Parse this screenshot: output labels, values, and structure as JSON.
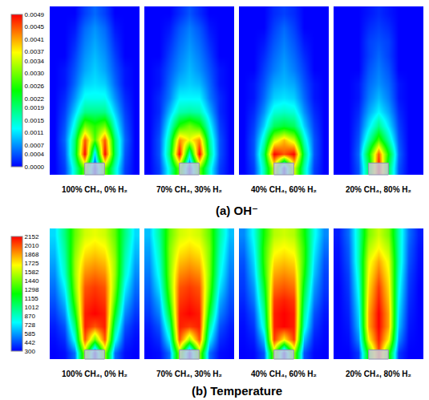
{
  "chart_data": [
    {
      "type": "heatmap",
      "title": "(a) OH⁻",
      "tick_labels": false,
      "zlim": [
        0,
        0.0049
      ],
      "zticks": [
        {
          "value": 0,
          "label": "0.0000"
        },
        0.0004,
        0.0007,
        0.0011,
        0.0015,
        0.0019,
        0.0022,
        0.0026,
        {
          "value": 0.003,
          "label": "0.0030"
        },
        0.0034,
        0.0037,
        0.0041,
        0.0045,
        0.0049
      ],
      "panels": [
        {
          "title": "100% CH₄, 0% H₂",
          "cells": [
            [
              0,
              0,
              0,
              0.0003,
              0.0005,
              0.0003,
              0,
              0,
              0
            ],
            [
              0,
              0,
              0.0001,
              0.0005,
              0.0007,
              0.0005,
              0.0001,
              0,
              0
            ],
            [
              0,
              0,
              0.0002,
              0.0006,
              0.0008,
              0.0006,
              0.0002,
              0,
              0
            ],
            [
              0,
              0,
              0.0003,
              0.0007,
              0.0009,
              0.0007,
              0.0003,
              0,
              0
            ],
            [
              0,
              0.0001,
              0.0004,
              0.0008,
              0.001,
              0.0008,
              0.0004,
              0.0001,
              0
            ],
            [
              0,
              0.0001,
              0.0005,
              0.001,
              0.0011,
              0.001,
              0.0005,
              0.0001,
              0
            ],
            [
              0,
              0.0002,
              0.0007,
              0.0013,
              0.0013,
              0.0013,
              0.0007,
              0.0002,
              0
            ],
            [
              0,
              0.0003,
              0.001,
              0.0018,
              0.0018,
              0.0018,
              0.001,
              0.0003,
              0
            ],
            [
              0,
              0.0004,
              0.0014,
              0.003,
              0.0026,
              0.003,
              0.0014,
              0.0004,
              0
            ],
            [
              0,
              0.0005,
              0.0019,
              0.0045,
              0.0028,
              0.0045,
              0.0019,
              0.0005,
              0
            ],
            [
              0,
              0.0004,
              0.002,
              0.0049,
              0.001,
              0.0049,
              0.002,
              0.0004,
              0
            ],
            [
              0,
              0.0003,
              0.0015,
              0.003,
              0,
              0.003,
              0.0015,
              0.0003,
              0
            ]
          ]
        },
        {
          "title": "70% CH₄, 30% H₂",
          "cells": [
            [
              0,
              0,
              0,
              0.0002,
              0.0004,
              0.0002,
              0,
              0,
              0
            ],
            [
              0,
              0,
              0.0001,
              0.0004,
              0.0006,
              0.0004,
              0.0001,
              0,
              0
            ],
            [
              0,
              0,
              0.0002,
              0.0005,
              0.0007,
              0.0005,
              0.0002,
              0,
              0
            ],
            [
              0,
              0,
              0.0003,
              0.0006,
              0.0008,
              0.0006,
              0.0003,
              0,
              0
            ],
            [
              0,
              0.0001,
              0.0004,
              0.0007,
              0.0009,
              0.0007,
              0.0004,
              0.0001,
              0
            ],
            [
              0,
              0.0001,
              0.0005,
              0.0009,
              0.001,
              0.0009,
              0.0005,
              0.0001,
              0
            ],
            [
              0,
              0.0002,
              0.0006,
              0.0012,
              0.0012,
              0.0012,
              0.0006,
              0.0002,
              0
            ],
            [
              0,
              0.0002,
              0.0009,
              0.0016,
              0.0017,
              0.0016,
              0.0009,
              0.0002,
              0
            ],
            [
              0,
              0.0003,
              0.0013,
              0.0026,
              0.003,
              0.0026,
              0.0013,
              0.0003,
              0
            ],
            [
              0,
              0.0004,
              0.0017,
              0.0042,
              0.0036,
              0.0042,
              0.0017,
              0.0004,
              0
            ],
            [
              0,
              0.0004,
              0.0019,
              0.0049,
              0.0015,
              0.0049,
              0.0019,
              0.0004,
              0
            ],
            [
              0,
              0.0003,
              0.0014,
              0.003,
              0,
              0.003,
              0.0014,
              0.0003,
              0
            ]
          ]
        },
        {
          "title": "40% CH₄, 60% H₂",
          "cells": [
            [
              0,
              0,
              0,
              0.0002,
              0.0003,
              0.0002,
              0,
              0,
              0
            ],
            [
              0,
              0,
              0,
              0.0003,
              0.0005,
              0.0003,
              0,
              0,
              0
            ],
            [
              0,
              0,
              0.0001,
              0.0004,
              0.0006,
              0.0004,
              0.0001,
              0,
              0
            ],
            [
              0,
              0,
              0.0002,
              0.0005,
              0.0007,
              0.0005,
              0.0002,
              0,
              0
            ],
            [
              0,
              0,
              0.0003,
              0.0006,
              0.0008,
              0.0006,
              0.0003,
              0,
              0
            ],
            [
              0,
              0.0001,
              0.0004,
              0.0008,
              0.0009,
              0.0008,
              0.0004,
              0.0001,
              0
            ],
            [
              0,
              0.0001,
              0.0005,
              0.001,
              0.0011,
              0.001,
              0.0005,
              0.0001,
              0
            ],
            [
              0,
              0.0002,
              0.0007,
              0.0014,
              0.0015,
              0.0014,
              0.0007,
              0.0002,
              0
            ],
            [
              0,
              0.0003,
              0.001,
              0.002,
              0.0022,
              0.002,
              0.001,
              0.0003,
              0
            ],
            [
              0,
              0.0004,
              0.0015,
              0.0034,
              0.004,
              0.0034,
              0.0015,
              0.0004,
              0
            ],
            [
              0,
              0.0004,
              0.002,
              0.0049,
              0.0045,
              0.0049,
              0.002,
              0.0004,
              0
            ],
            [
              0,
              0.0003,
              0.0016,
              0.0035,
              0,
              0.0035,
              0.0016,
              0.0003,
              0
            ]
          ]
        },
        {
          "title": "20% CH₄, 80% H₂",
          "cells": [
            [
              0,
              0,
              0,
              0.0001,
              0.0002,
              0.0001,
              0,
              0,
              0
            ],
            [
              0,
              0,
              0,
              0.0002,
              0.0003,
              0.0002,
              0,
              0,
              0
            ],
            [
              0,
              0,
              0,
              0.0003,
              0.0004,
              0.0003,
              0,
              0,
              0
            ],
            [
              0,
              0,
              0,
              0.0003,
              0.0005,
              0.0003,
              0,
              0,
              0
            ],
            [
              0,
              0,
              0,
              0.0004,
              0.0006,
              0.0004,
              0,
              0,
              0
            ],
            [
              0,
              0,
              0.0001,
              0.0005,
              0.0007,
              0.0005,
              0.0001,
              0,
              0
            ],
            [
              0,
              0,
              0.0001,
              0.0006,
              0.0009,
              0.0006,
              0.0001,
              0,
              0
            ],
            [
              0,
              0,
              0.0002,
              0.0008,
              0.0012,
              0.0008,
              0.0002,
              0,
              0
            ],
            [
              0,
              0,
              0.0003,
              0.0011,
              0.0018,
              0.0011,
              0.0003,
              0,
              0
            ],
            [
              0,
              0,
              0.0004,
              0.0016,
              0.0028,
              0.0016,
              0.0004,
              0,
              0
            ],
            [
              0,
              0,
              0.0005,
              0.0024,
              0.0045,
              0.0024,
              0.0005,
              0,
              0
            ],
            [
              0,
              0,
              0.0004,
              0.002,
              0.0049,
              0.002,
              0.0004,
              0,
              0
            ]
          ]
        }
      ]
    },
    {
      "type": "heatmap",
      "title": "(b) Temperature",
      "tick_labels": false,
      "zlim": [
        300,
        2152
      ],
      "zticks": [
        300,
        442,
        585,
        728,
        870,
        1012,
        1155,
        1298,
        1440,
        1582,
        1725,
        1868,
        2010,
        2152
      ],
      "panels": [
        {
          "title": "100% CH₄, 0% H₂",
          "cells": [
            [
              700,
              1000,
              1400,
              1600,
              1650,
              1600,
              1400,
              1000,
              700
            ],
            [
              650,
              950,
              1450,
              1700,
              1750,
              1700,
              1450,
              950,
              650
            ],
            [
              600,
              900,
              1500,
              1800,
              1850,
              1800,
              1500,
              900,
              600
            ],
            [
              550,
              850,
              1500,
              1900,
              1950,
              1900,
              1500,
              850,
              550
            ],
            [
              500,
              750,
              1450,
              2000,
              2050,
              2000,
              1450,
              750,
              500
            ],
            [
              450,
              650,
              1350,
              2050,
              2100,
              2050,
              1350,
              650,
              450
            ],
            [
              400,
              550,
              1200,
              2100,
              2152,
              2100,
              1200,
              550,
              400
            ],
            [
              350,
              450,
              1000,
              2100,
              2000,
              2100,
              1000,
              450,
              350
            ],
            [
              320,
              380,
              800,
              2000,
              1400,
              2000,
              800,
              380,
              320
            ],
            [
              300,
              320,
              500,
              1500,
              300,
              1500,
              500,
              320,
              300
            ]
          ]
        },
        {
          "title": "70% CH₄, 30% H₂",
          "cells": [
            [
              650,
              950,
              1400,
              1600,
              1650,
              1600,
              1400,
              950,
              650
            ],
            [
              600,
              900,
              1450,
              1700,
              1750,
              1700,
              1450,
              900,
              600
            ],
            [
              560,
              850,
              1450,
              1800,
              1850,
              1800,
              1450,
              850,
              560
            ],
            [
              520,
              800,
              1450,
              1900,
              1950,
              1900,
              1450,
              800,
              520
            ],
            [
              480,
              720,
              1400,
              2000,
              2050,
              2000,
              1400,
              720,
              480
            ],
            [
              440,
              620,
              1300,
              2050,
              2100,
              2050,
              1300,
              620,
              440
            ],
            [
              400,
              540,
              1150,
              2100,
              2152,
              2100,
              1150,
              540,
              400
            ],
            [
              350,
              450,
              950,
              2100,
              2050,
              2100,
              950,
              450,
              350
            ],
            [
              320,
              380,
              750,
              2000,
              1500,
              2000,
              750,
              380,
              320
            ],
            [
              300,
              320,
              500,
              1500,
              300,
              1500,
              500,
              320,
              300
            ]
          ]
        },
        {
          "title": "40% CH₄, 60% H₂",
          "cells": [
            [
              550,
              800,
              1250,
              1550,
              1600,
              1550,
              1250,
              800,
              550
            ],
            [
              500,
              750,
              1300,
              1650,
              1700,
              1650,
              1300,
              750,
              500
            ],
            [
              450,
              700,
              1300,
              1750,
              1800,
              1750,
              1300,
              700,
              450
            ],
            [
              420,
              650,
              1250,
              1850,
              1900,
              1850,
              1250,
              650,
              420
            ],
            [
              400,
              580,
              1150,
              1950,
              2000,
              1950,
              1150,
              580,
              400
            ],
            [
              370,
              520,
              1050,
              2050,
              2100,
              2050,
              1050,
              520,
              370
            ],
            [
              340,
              450,
              950,
              2100,
              2152,
              2100,
              950,
              450,
              340
            ],
            [
              320,
              400,
              850,
              2100,
              2150,
              2100,
              850,
              400,
              320
            ],
            [
              310,
              350,
              650,
              2050,
              1700,
              2050,
              650,
              350,
              310
            ],
            [
              300,
              310,
              450,
              1500,
              300,
              1500,
              450,
              310,
              300
            ]
          ]
        },
        {
          "title": "20% CH₄, 80% H₂",
          "cells": [
            [
              350,
              500,
              900,
              1450,
              1600,
              1450,
              900,
              500,
              350
            ],
            [
              330,
              470,
              900,
              1550,
              1700,
              1550,
              900,
              470,
              330
            ],
            [
              320,
              450,
              900,
              1650,
              1850,
              1650,
              900,
              450,
              320
            ],
            [
              310,
              420,
              850,
              1700,
              1950,
              1700,
              850,
              420,
              310
            ],
            [
              300,
              400,
              800,
              1750,
              2050,
              1750,
              800,
              400,
              300
            ],
            [
              300,
              380,
              750,
              1800,
              2100,
              1800,
              750,
              380,
              300
            ],
            [
              300,
              360,
              700,
              1850,
              2152,
              1850,
              700,
              360,
              300
            ],
            [
              300,
              340,
              650,
              1850,
              2152,
              1850,
              650,
              340,
              300
            ],
            [
              300,
              320,
              550,
              1700,
              2100,
              1700,
              550,
              320,
              300
            ],
            [
              300,
              300,
              400,
              1300,
              2000,
              1300,
              400,
              300,
              300
            ]
          ]
        }
      ]
    }
  ]
}
